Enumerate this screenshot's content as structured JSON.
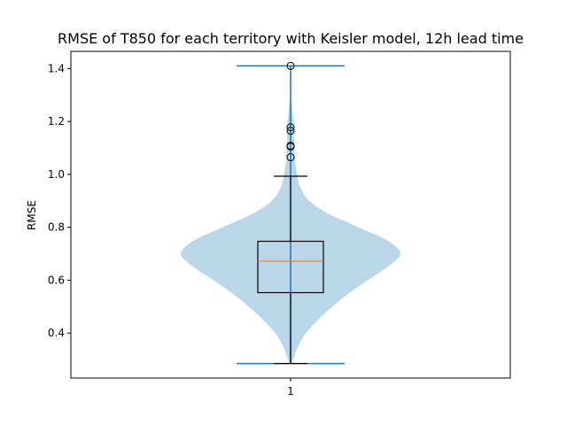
{
  "chart_data": {
    "type": "violin",
    "title": "RMSE of T850 for each territory with Keisler model, 12h lead time",
    "xlabel": "",
    "ylabel": "RMSE",
    "categories": [
      "1"
    ],
    "x_ticks": [
      "1"
    ],
    "y_ticks": [
      "0.4",
      "0.6",
      "0.8",
      "1.0",
      "1.2",
      "1.4"
    ],
    "ylim": [
      0.23,
      1.465
    ],
    "grid": false,
    "violin": {
      "min": 0.285,
      "max": 1.41,
      "density_profile": [
        {
          "y": 0.285,
          "w": 0.01
        },
        {
          "y": 0.32,
          "w": 0.04
        },
        {
          "y": 0.36,
          "w": 0.08
        },
        {
          "y": 0.4,
          "w": 0.14
        },
        {
          "y": 0.45,
          "w": 0.25
        },
        {
          "y": 0.5,
          "w": 0.38
        },
        {
          "y": 0.55,
          "w": 0.53
        },
        {
          "y": 0.6,
          "w": 0.7
        },
        {
          "y": 0.65,
          "w": 0.88
        },
        {
          "y": 0.7,
          "w": 1.0
        },
        {
          "y": 0.75,
          "w": 0.88
        },
        {
          "y": 0.8,
          "w": 0.62
        },
        {
          "y": 0.85,
          "w": 0.35
        },
        {
          "y": 0.9,
          "w": 0.17
        },
        {
          "y": 0.95,
          "w": 0.09
        },
        {
          "y": 1.0,
          "w": 0.06
        },
        {
          "y": 1.05,
          "w": 0.04
        },
        {
          "y": 1.1,
          "w": 0.035
        },
        {
          "y": 1.15,
          "w": 0.03
        },
        {
          "y": 1.2,
          "w": 0.025
        },
        {
          "y": 1.25,
          "w": 0.015
        },
        {
          "y": 1.29,
          "w": 0.005
        },
        {
          "y": 1.33,
          "w": 0.0
        },
        {
          "y": 1.41,
          "w": 0.0
        }
      ]
    },
    "box": {
      "q1": 0.553,
      "median": 0.672,
      "q3": 0.747,
      "whisker_low": 0.285,
      "whisker_high": 0.993
    },
    "outliers": [
      1.065,
      1.105,
      1.108,
      1.165,
      1.178,
      1.41
    ],
    "colors": {
      "violin_fill": "#bad6e9",
      "violin_lines": "#1f77b4",
      "box": "#000000",
      "median": "#ff7f0e",
      "outlier": "#000000"
    }
  }
}
